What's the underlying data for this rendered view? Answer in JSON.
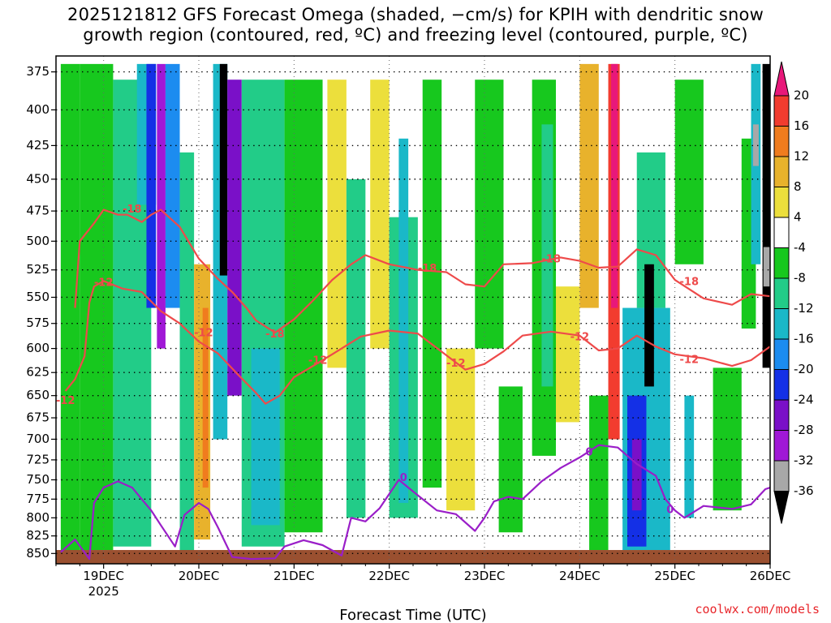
{
  "header": {
    "title_line1": "2025121812 GFS Forecast Omega (shaded, −cm/s) for KPIH with dendritic snow",
    "title_line2": "growth region (contoured, red, ºC) and freezing level (contoured, purple, ºC)"
  },
  "footer": {
    "credit": "coolwx.com/models"
  },
  "chart_data": {
    "type": "heatmap",
    "title": "2025121812 GFS Forecast Omega (shaded, −cm/s) for KPIH with dendritic snow growth region (contoured, red, ºC) and freezing level (contoured, purple, ºC)",
    "xlabel": "Forecast Time (UTC)",
    "ylabel": "",
    "x_ticks": [
      "19DEC",
      "20DEC",
      "21DEC",
      "22DEC",
      "23DEC",
      "24DEC",
      "25DEC",
      "26DEC"
    ],
    "x_year_label": "2025",
    "xlim_days": [
      18.5,
      26
    ],
    "y_ticks": [
      375,
      400,
      425,
      450,
      475,
      500,
      525,
      550,
      575,
      600,
      625,
      650,
      675,
      700,
      725,
      750,
      775,
      800,
      825,
      850
    ],
    "ylim": [
      365,
      865
    ],
    "y_scale": "log-pressure",
    "grid": true,
    "colorbar": {
      "ticks": [
        20,
        16,
        12,
        8,
        4,
        -4,
        -8,
        -12,
        -16,
        -20,
        -24,
        -28,
        -32,
        -36
      ],
      "bins": [
        {
          "range": "20+",
          "color": "#e8187a"
        },
        {
          "range": "16-20",
          "color": "#f23c2f"
        },
        {
          "range": "12-16",
          "color": "#f07c1e"
        },
        {
          "range": "8-12",
          "color": "#e8b22c"
        },
        {
          "range": "4-8",
          "color": "#ecdf3c"
        },
        {
          "range": "-4-4",
          "color": "#ffffff"
        },
        {
          "range": "-8--4",
          "color": "#17c81e"
        },
        {
          "range": "-12--8",
          "color": "#22cc88"
        },
        {
          "range": "-16--12",
          "color": "#1ab8c8"
        },
        {
          "range": "-20--16",
          "color": "#1c8cf0"
        },
        {
          "range": "-24--20",
          "color": "#1430e6"
        },
        {
          "range": "-28--24",
          "color": "#7a10c8"
        },
        {
          "range": "-32--28",
          "color": "#a018d6"
        },
        {
          "range": "-36--32",
          "color": "#a8a8a8"
        },
        {
          "range": "<-36",
          "color": "#000000"
        }
      ]
    },
    "contour_labels": [
      {
        "text": "-18",
        "color": "#ee4a4a"
      },
      {
        "text": "-12",
        "color": "#ee4a4a"
      },
      {
        "text": "0",
        "color": "#9a1ec8"
      }
    ],
    "contours": {
      "minus18": [
        [
          18.7,
          560
        ],
        [
          18.75,
          500
        ],
        [
          18.9,
          485
        ],
        [
          19.0,
          474
        ],
        [
          19.15,
          478
        ],
        [
          19.25,
          478
        ],
        [
          19.4,
          484
        ],
        [
          19.5,
          478
        ],
        [
          19.6,
          474
        ],
        [
          19.8,
          488
        ],
        [
          20.0,
          515
        ],
        [
          20.2,
          533
        ],
        [
          20.35,
          545
        ],
        [
          20.5,
          560
        ],
        [
          20.6,
          572
        ],
        [
          20.8,
          584
        ],
        [
          21.0,
          571
        ],
        [
          21.2,
          553
        ],
        [
          21.4,
          534
        ],
        [
          21.6,
          520
        ],
        [
          21.75,
          512
        ],
        [
          22.0,
          520
        ],
        [
          22.3,
          525
        ],
        [
          22.6,
          527
        ],
        [
          22.8,
          538
        ],
        [
          23.0,
          540
        ],
        [
          23.2,
          520
        ],
        [
          23.5,
          519
        ],
        [
          23.8,
          514
        ],
        [
          24.0,
          517
        ],
        [
          24.2,
          523
        ],
        [
          24.4,
          522
        ],
        [
          24.6,
          507
        ],
        [
          24.8,
          512
        ],
        [
          25.0,
          534
        ],
        [
          25.3,
          551
        ],
        [
          25.6,
          557
        ],
        [
          25.8,
          547
        ],
        [
          26.0,
          549
        ]
      ],
      "minus12": [
        [
          18.6,
          645
        ],
        [
          18.7,
          632
        ],
        [
          18.8,
          608
        ],
        [
          18.85,
          555
        ],
        [
          18.9,
          540
        ],
        [
          19.0,
          535
        ],
        [
          19.2,
          542
        ],
        [
          19.4,
          545
        ],
        [
          19.6,
          563
        ],
        [
          19.8,
          575
        ],
        [
          20.0,
          593
        ],
        [
          20.2,
          605
        ],
        [
          20.4,
          626
        ],
        [
          20.6,
          647
        ],
        [
          20.7,
          659
        ],
        [
          20.85,
          650
        ],
        [
          21.0,
          630
        ],
        [
          21.2,
          618
        ],
        [
          21.4,
          606
        ],
        [
          21.7,
          588
        ],
        [
          22.0,
          582
        ],
        [
          22.3,
          585
        ],
        [
          22.6,
          607
        ],
        [
          22.8,
          622
        ],
        [
          23.0,
          616
        ],
        [
          23.2,
          603
        ],
        [
          23.4,
          587
        ],
        [
          23.7,
          583
        ],
        [
          24.0,
          587
        ],
        [
          24.2,
          602
        ],
        [
          24.4,
          600
        ],
        [
          24.6,
          587
        ],
        [
          24.8,
          598
        ],
        [
          25.0,
          606
        ],
        [
          25.3,
          610
        ],
        [
          25.6,
          618
        ],
        [
          25.8,
          612
        ],
        [
          26.0,
          598
        ]
      ],
      "zero": [
        [
          18.55,
          848
        ],
        [
          18.7,
          830
        ],
        [
          18.85,
          858
        ],
        [
          18.9,
          780
        ],
        [
          19.0,
          760
        ],
        [
          19.15,
          752
        ],
        [
          19.3,
          760
        ],
        [
          19.4,
          775
        ],
        [
          19.5,
          790
        ],
        [
          19.6,
          810
        ],
        [
          19.75,
          840
        ],
        [
          19.85,
          796
        ],
        [
          20.0,
          780
        ],
        [
          20.1,
          788
        ],
        [
          20.2,
          813
        ],
        [
          20.35,
          855
        ],
        [
          20.55,
          858
        ],
        [
          20.8,
          857
        ],
        [
          20.9,
          840
        ],
        [
          21.1,
          831
        ],
        [
          21.3,
          838
        ],
        [
          21.5,
          853
        ],
        [
          21.6,
          800
        ],
        [
          21.75,
          805
        ],
        [
          21.9,
          787
        ],
        [
          22.1,
          750
        ],
        [
          22.3,
          770
        ],
        [
          22.5,
          790
        ],
        [
          22.7,
          795
        ],
        [
          22.9,
          818
        ],
        [
          23.0,
          800
        ],
        [
          23.1,
          778
        ],
        [
          23.25,
          772
        ],
        [
          23.4,
          775
        ],
        [
          23.6,
          752
        ],
        [
          23.8,
          735
        ],
        [
          24.0,
          722
        ],
        [
          24.2,
          707
        ],
        [
          24.4,
          710
        ],
        [
          24.6,
          730
        ],
        [
          24.8,
          745
        ],
        [
          24.9,
          775
        ],
        [
          25.0,
          790
        ],
        [
          25.1,
          800
        ],
        [
          25.3,
          784
        ],
        [
          25.6,
          788
        ],
        [
          25.8,
          782
        ],
        [
          25.95,
          762
        ],
        [
          26.0,
          760
        ]
      ]
    }
  }
}
